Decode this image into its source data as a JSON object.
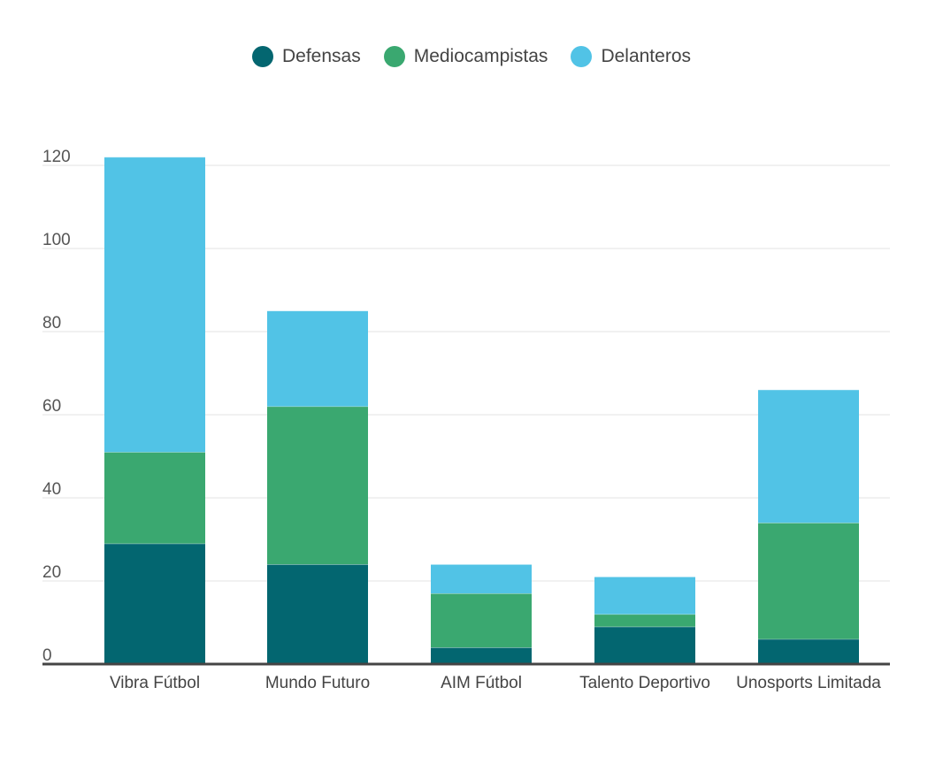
{
  "chart_data": {
    "type": "bar",
    "stacked": true,
    "categories": [
      "Vibra Fútbol",
      "Mundo Futuro",
      "AIM Fútbol",
      "Talento Deportivo",
      "Unosports Limitada"
    ],
    "series": [
      {
        "name": "Defensas",
        "color": "#036670",
        "values": [
          29,
          24,
          4,
          9,
          6
        ]
      },
      {
        "name": "Mediocampistas",
        "color": "#3aa870",
        "values": [
          22,
          38,
          13,
          3,
          28
        ]
      },
      {
        "name": "Delanteros",
        "color": "#51c3e6",
        "values": [
          71,
          23,
          7,
          9,
          32
        ]
      }
    ],
    "yticks": [
      0,
      20,
      40,
      60,
      80,
      100,
      120
    ],
    "ylim": [
      0,
      122
    ],
    "legend_position": "top-center",
    "grid": true
  }
}
